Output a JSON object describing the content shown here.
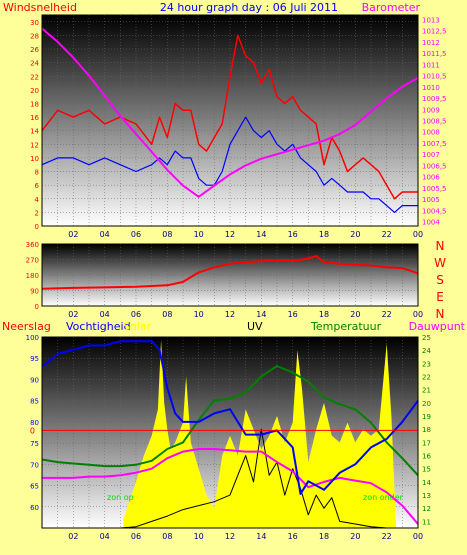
{
  "header": {
    "title": "24 hour graph day : 06 Juli 2011",
    "left_label": "Windsnelheid",
    "right_label": "Barometer"
  },
  "colors": {
    "background": "#ffff99",
    "wind": "#ff0000",
    "gust": "#0000ff",
    "barometer": "#ff00ff",
    "humidity": "#0000ff",
    "temperature": "#008000",
    "dewpoint": "#ff00ff",
    "solar": "#ffff00",
    "uv": "#000000",
    "rain": "#ff0000",
    "direction": "#ff0000"
  },
  "chart_data": [
    {
      "type": "line",
      "id": "wind-baro",
      "x_ticks": [
        "02",
        "04",
        "06",
        "08",
        "10",
        "12",
        "14",
        "16",
        "18",
        "20",
        "22",
        "00"
      ],
      "y_left_ticks": [
        "0",
        "2",
        "4",
        "6",
        "8",
        "10",
        "12",
        "14",
        "16",
        "18",
        "20",
        "22",
        "24",
        "26",
        "28",
        "30"
      ],
      "y_left_range": [
        0,
        31
      ],
      "y_right_ticks": [
        "1004",
        "1004,5",
        "1005",
        "1005,5",
        "1006",
        "1006,5",
        "1007",
        "1007,5",
        "1008",
        "1008,5",
        "1009",
        "1009,5",
        "1010",
        "1010,5",
        "1011",
        "1011,5",
        "1012",
        "1012,5",
        "1013"
      ],
      "y_right_range": [
        1003.8,
        1013.2
      ],
      "series": [
        {
          "key": "wind",
          "x": [
            0,
            1,
            2,
            3,
            4,
            5,
            6,
            7,
            7.5,
            8,
            8.5,
            9,
            9.5,
            10,
            10.5,
            11,
            11.5,
            12,
            12.5,
            13,
            13.5,
            14,
            14.5,
            15,
            15.5,
            16,
            16.5,
            17,
            17.5,
            18,
            18.5,
            19,
            19.5,
            20,
            20.5,
            21,
            21.5,
            22,
            22.5,
            23,
            23.5,
            24
          ],
          "y": [
            14,
            17,
            16,
            17,
            15,
            16,
            15,
            12,
            16,
            13,
            18,
            17,
            17,
            12,
            11,
            13,
            15,
            22,
            28,
            25,
            24,
            21,
            23,
            19,
            18,
            19,
            17,
            16,
            15,
            9,
            13,
            11,
            8,
            9,
            10,
            9,
            8,
            6,
            4,
            5,
            5,
            5
          ]
        },
        {
          "key": "gust",
          "x": [
            0,
            1,
            2,
            3,
            4,
            5,
            6,
            7,
            7.5,
            8,
            8.5,
            9,
            9.5,
            10,
            10.5,
            11,
            11.5,
            12,
            12.5,
            13,
            13.5,
            14,
            14.5,
            15,
            15.5,
            16,
            16.5,
            17,
            17.5,
            18,
            18.5,
            19,
            19.5,
            20,
            20.5,
            21,
            21.5,
            22,
            22.5,
            23,
            23.5,
            24
          ],
          "y": [
            9,
            10,
            10,
            9,
            10,
            9,
            8,
            9,
            10,
            9,
            11,
            10,
            10,
            7,
            6,
            6,
            8,
            12,
            14,
            16,
            14,
            13,
            14,
            12,
            11,
            12,
            10,
            9,
            8,
            6,
            7,
            6,
            5,
            5,
            5,
            4,
            4,
            3,
            2,
            3,
            3,
            3
          ]
        },
        {
          "key": "barometer",
          "x": [
            0,
            1,
            2,
            3,
            4,
            5,
            6,
            7,
            8,
            9,
            10,
            11,
            12,
            13,
            14,
            15,
            16,
            17,
            18,
            19,
            20,
            21,
            22,
            23,
            24
          ],
          "y": [
            1012.6,
            1012.0,
            1011.3,
            1010.5,
            1009.6,
            1008.7,
            1007.9,
            1007.1,
            1006.3,
            1005.6,
            1005.1,
            1005.6,
            1006.1,
            1006.5,
            1006.8,
            1007.0,
            1007.2,
            1007.4,
            1007.6,
            1007.9,
            1008.3,
            1008.9,
            1009.5,
            1010.0,
            1010.4
          ]
        }
      ]
    },
    {
      "type": "line",
      "id": "wind-direction",
      "x_ticks": [
        "02",
        "04",
        "06",
        "08",
        "10",
        "12",
        "14",
        "16",
        "18",
        "20",
        "22",
        "00"
      ],
      "y_ticks": [
        "0",
        "90",
        "180",
        "270",
        "360"
      ],
      "y_range": [
        0,
        360
      ],
      "direction_labels": [
        "N",
        "W",
        "S",
        "E",
        "N"
      ],
      "series": [
        {
          "key": "direction",
          "x": [
            0,
            2,
            4,
            6,
            8,
            9,
            10,
            11,
            12,
            13,
            14,
            15,
            16,
            17,
            17.5,
            18,
            19,
            20,
            21,
            22,
            23,
            24
          ],
          "y": [
            100,
            105,
            108,
            112,
            120,
            140,
            195,
            225,
            245,
            255,
            260,
            265,
            262,
            275,
            290,
            255,
            245,
            240,
            235,
            225,
            220,
            190
          ]
        }
      ]
    },
    {
      "type": "line",
      "id": "weather",
      "x_ticks": [
        "02",
        "04",
        "06",
        "08",
        "10",
        "12",
        "14",
        "16",
        "18",
        "20",
        "22",
        "00"
      ],
      "labels": {
        "rain": "Neerslag",
        "humidity": "Vochtigheid",
        "solar": "Solar",
        "uv": "UV",
        "temperature": "Temperatuur",
        "dewpoint": "Dauwpunt"
      },
      "y_left_ticks": [
        "60",
        "65",
        "70",
        "75",
        "80",
        "85",
        "90",
        "95",
        "100"
      ],
      "y_left_range": [
        55,
        100
      ],
      "y_right_ticks": [
        "11",
        "12",
        "13",
        "14",
        "15",
        "16",
        "17",
        "18",
        "19",
        "20",
        "21",
        "22",
        "23",
        "24",
        "25"
      ],
      "y_right_range": [
        10.5,
        25
      ],
      "rain_tick": "0",
      "rain_value": 0,
      "annotations": {
        "sunrise": "zon op",
        "sunset": "zon onder"
      },
      "series": [
        {
          "key": "humidity",
          "x": [
            0,
            1,
            2,
            3,
            4,
            5,
            6,
            7,
            7.5,
            8,
            8.5,
            9,
            10,
            11,
            12,
            13,
            14,
            15,
            16,
            16.5,
            17,
            18,
            19,
            20,
            21,
            22,
            23,
            24
          ],
          "y": [
            93,
            96,
            97,
            98,
            98,
            99,
            99,
            99,
            97,
            88,
            82,
            80,
            80,
            82,
            83,
            77,
            77,
            78,
            74,
            63,
            66,
            64,
            68,
            70,
            74,
            76,
            80,
            85
          ]
        },
        {
          "key": "temperature",
          "x": [
            0,
            1,
            2,
            3,
            4,
            5,
            6,
            7,
            8,
            9,
            10,
            11,
            12,
            13,
            14,
            15,
            16,
            17,
            18,
            19,
            20,
            21,
            22,
            23,
            24
          ],
          "y": [
            15.7,
            15.5,
            15.4,
            15.3,
            15.2,
            15.2,
            15.3,
            15.6,
            16.5,
            17.0,
            18.7,
            20.2,
            20.3,
            20.8,
            22.0,
            22.8,
            22.3,
            21.6,
            20.4,
            19.9,
            19.5,
            18.5,
            17.0,
            15.8,
            14.5
          ]
        },
        {
          "key": "dewpoint",
          "x": [
            0,
            1,
            2,
            3,
            4,
            5,
            6,
            7,
            8,
            9,
            10,
            11,
            12,
            13,
            14,
            15,
            16,
            17,
            18,
            19,
            20,
            21,
            22,
            23,
            24
          ],
          "y": [
            14.3,
            14.3,
            14.3,
            14.4,
            14.4,
            14.5,
            14.7,
            15.0,
            15.8,
            16.3,
            16.5,
            16.5,
            16.4,
            16.3,
            16.3,
            15.5,
            14.8,
            13.6,
            14.0,
            14.3,
            14.1,
            13.9,
            13.2,
            12.2,
            10.8
          ]
        },
        {
          "key": "uv",
          "x": [
            0,
            5,
            6,
            7,
            8,
            9,
            10,
            11,
            12,
            12.5,
            13,
            13.5,
            14,
            14.5,
            15,
            15.5,
            16,
            16.5,
            17,
            17.5,
            18,
            18.5,
            19,
            20,
            21,
            22,
            24
          ],
          "y": [
            10.5,
            10.5,
            10.6,
            11.0,
            11.4,
            11.9,
            12.2,
            12.5,
            13.0,
            14.5,
            16.0,
            14.0,
            18.0,
            14.5,
            15.5,
            13.0,
            15.0,
            13.5,
            11.5,
            13.0,
            12.0,
            12.8,
            11.0,
            10.8,
            10.6,
            10.5,
            10.5
          ]
        },
        {
          "key": "solar",
          "x": [
            5.2,
            6,
            6.5,
            7,
            7.4,
            7.6,
            7.8,
            8.0,
            8.2,
            8.5,
            9,
            9.2,
            9.5,
            10,
            10.5,
            11,
            11.5,
            12,
            12.5,
            13,
            13.5,
            14,
            14.5,
            15,
            15.5,
            16,
            16.3,
            16.6,
            17,
            17.5,
            18,
            18.5,
            19,
            19.5,
            20,
            20.5,
            21,
            21.5,
            22,
            22.3,
            22.6
          ],
          "y": [
            11.2,
            14.0,
            16.0,
            17.5,
            19.5,
            24.8,
            20.0,
            18.0,
            16.5,
            17.0,
            18.5,
            22.0,
            17.0,
            15.0,
            13.0,
            12.0,
            16.0,
            17.5,
            16.0,
            19.5,
            18.0,
            16.5,
            17.5,
            19.0,
            17.0,
            18.5,
            24.0,
            21.0,
            15.5,
            18.0,
            20.0,
            17.5,
            17.0,
            18.5,
            17.0,
            18.0,
            17.5,
            18.0,
            24.5,
            19.0,
            10.5
          ]
        }
      ]
    }
  ]
}
